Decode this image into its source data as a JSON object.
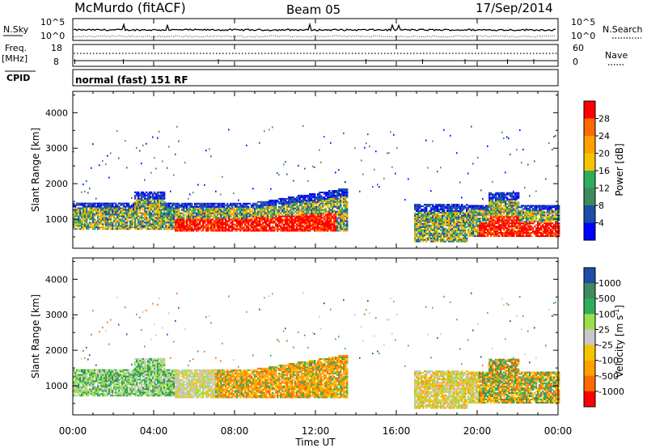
{
  "header": {
    "station": "McMurdo (fitACF)",
    "beam": "Beam 05",
    "date": "17/Sep/2014"
  },
  "aux_panels": {
    "nsky_label": "N.Sky",
    "nsky_ticks": [
      "10^5",
      "10^0"
    ],
    "nsearch_label": "N.Search",
    "nsearch_ticks": [
      "10^5",
      "10^0"
    ],
    "freq_label": "Freq.",
    "freq_unit": "[MHz]",
    "freq_ticks": [
      "18",
      "8"
    ],
    "nave_label": "Nave",
    "nave_ticks": [
      "60",
      "0"
    ],
    "cpid_label": "CPID",
    "cpid_text": "normal (fast) 151 RF"
  },
  "chart_data": [
    {
      "type": "heatmap",
      "name": "power",
      "ylabel": "Slant Range [km]",
      "ylim": [
        180,
        4600
      ],
      "yticks": [
        1000,
        2000,
        3000,
        4000
      ],
      "colorbar_label": "Power [dB]",
      "colorbar_ticks": [
        "28",
        "24",
        "20",
        "16",
        "12",
        "8",
        "4"
      ],
      "colorbar_colors": [
        "#ff0000",
        "#ff6a00",
        "#ff9f00",
        "#f5c400",
        "#2eae5a",
        "#3d8b5e",
        "#1c4da8",
        "#0000ff"
      ],
      "regions": [
        {
          "x": [
            0.0,
            13.5
          ],
          "y": [
            900,
            1450
          ],
          "level": "med"
        },
        {
          "x": [
            5.0,
            13.0
          ],
          "y": [
            700,
            1150
          ],
          "level": "high"
        },
        {
          "x": [
            17.0,
            24.0
          ],
          "y": [
            450,
            1450
          ],
          "level": "med"
        },
        {
          "x": [
            20.0,
            24.0
          ],
          "y": [
            500,
            1000
          ],
          "level": "high"
        }
      ]
    },
    {
      "type": "heatmap",
      "name": "velocity",
      "ylabel": "Velocity [m s^-1]",
      "yaxis_label": "Slant Range [km]",
      "ylim": [
        180,
        4600
      ],
      "yticks": [
        1000,
        2000,
        3000,
        4000
      ],
      "colorbar_label": "Velocity [m s",
      "colorbar_label_exp": "-1",
      "colorbar_label_end": "]",
      "colorbar_ticks": [
        "1000",
        "500",
        "100",
        "25",
        "-25",
        "-100",
        "-500",
        "-1000"
      ],
      "colorbar_colors": [
        "#1c4da8",
        "#3d8b5e",
        "#2eae5a",
        "#9be04a",
        "#c8c8c8",
        "#f5c400",
        "#ff9f00",
        "#ff6a00",
        "#ff0000"
      ],
      "xlabel": "Time UT",
      "xticks": [
        "00:00",
        "04:00",
        "08:00",
        "12:00",
        "16:00",
        "20:00",
        "00:00"
      ],
      "xlim": [
        0,
        24
      ]
    }
  ]
}
